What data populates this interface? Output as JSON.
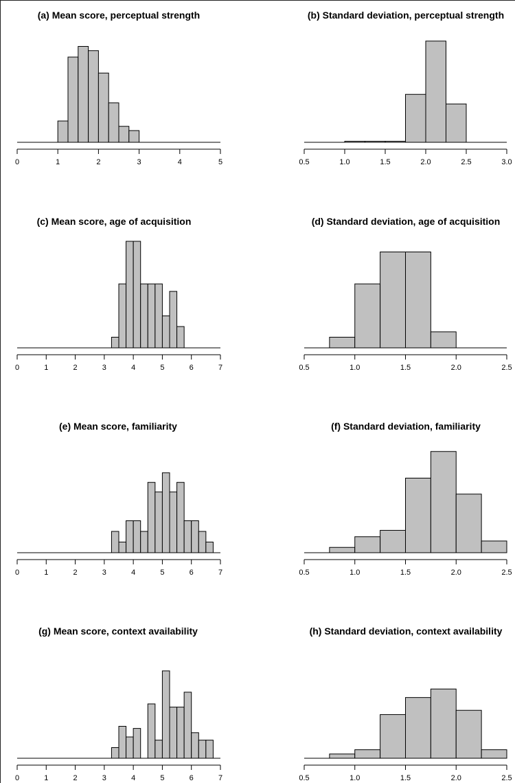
{
  "chart_data": [
    {
      "id": "a",
      "type": "bar",
      "title": "(a) Mean score, perceptual strength",
      "xlim": [
        0,
        5
      ],
      "ticks": [
        0,
        1,
        2,
        3,
        4,
        5
      ],
      "tick_labels": [
        "0",
        "1",
        "2",
        "3",
        "4",
        "5"
      ],
      "bin_width": 0.25,
      "bins": [
        [
          1.0,
          2
        ],
        [
          1.25,
          8
        ],
        [
          1.5,
          9
        ],
        [
          1.75,
          8.6
        ],
        [
          2.0,
          6.5
        ],
        [
          2.25,
          3.7
        ],
        [
          2.5,
          1.5
        ],
        [
          2.75,
          1.1
        ]
      ]
    },
    {
      "id": "b",
      "type": "bar",
      "title": "(b) Standard deviation, perceptual strength",
      "xlim": [
        0.5,
        3.0
      ],
      "ticks": [
        0.5,
        1.0,
        1.5,
        2.0,
        2.5,
        3.0
      ],
      "tick_labels": [
        "0.5",
        "1.0",
        "1.5",
        "2.0",
        "2.5",
        "3.0"
      ],
      "bin_width": 0.25,
      "bins": [
        [
          1.0,
          0.1
        ],
        [
          1.25,
          0.1
        ],
        [
          1.5,
          0.1
        ],
        [
          1.75,
          4.5
        ],
        [
          2.0,
          9.5
        ],
        [
          2.25,
          3.6
        ]
      ]
    },
    {
      "id": "c",
      "type": "bar",
      "title": "(c) Mean score, age of acquisition",
      "xlim": [
        0,
        7
      ],
      "ticks": [
        0,
        1,
        2,
        3,
        4,
        5,
        6,
        7
      ],
      "tick_labels": [
        "0",
        "1",
        "2",
        "3",
        "4",
        "5",
        "6",
        "7"
      ],
      "bin_width": 0.25,
      "bins": [
        [
          3.25,
          1
        ],
        [
          3.5,
          6
        ],
        [
          3.75,
          10
        ],
        [
          4.0,
          10
        ],
        [
          4.25,
          6
        ],
        [
          4.5,
          6
        ],
        [
          4.75,
          6
        ],
        [
          5.0,
          3
        ],
        [
          5.25,
          5.3
        ],
        [
          5.5,
          2
        ]
      ]
    },
    {
      "id": "d",
      "type": "bar",
      "title": "(d) Standard deviation, age of acquisition",
      "xlim": [
        0.5,
        2.5
      ],
      "ticks": [
        0.5,
        1.0,
        1.5,
        2.0,
        2.5
      ],
      "tick_labels": [
        "0.5",
        "1.0",
        "1.5",
        "2.0",
        "2.5"
      ],
      "bin_width": 0.25,
      "bins": [
        [
          0.75,
          1
        ],
        [
          1.0,
          6
        ],
        [
          1.25,
          9
        ],
        [
          1.5,
          9
        ],
        [
          1.75,
          1.5
        ]
      ]
    },
    {
      "id": "e",
      "type": "bar",
      "title": "(e) Mean score, familiarity",
      "xlim": [
        0,
        7
      ],
      "ticks": [
        0,
        1,
        2,
        3,
        4,
        5,
        6,
        7
      ],
      "tick_labels": [
        "0",
        "1",
        "2",
        "3",
        "4",
        "5",
        "6",
        "7"
      ],
      "bin_width": 0.25,
      "bins": [
        [
          3.25,
          2
        ],
        [
          3.5,
          1
        ],
        [
          3.75,
          3
        ],
        [
          4.0,
          3
        ],
        [
          4.25,
          2
        ],
        [
          4.5,
          6.6
        ],
        [
          4.75,
          5.7
        ],
        [
          5.0,
          7.5
        ],
        [
          5.25,
          5.7
        ],
        [
          5.5,
          6.6
        ],
        [
          5.75,
          3
        ],
        [
          6.0,
          3
        ],
        [
          6.25,
          2
        ],
        [
          6.5,
          1
        ]
      ]
    },
    {
      "id": "f",
      "type": "bar",
      "title": "(f) Standard deviation, familiarity",
      "xlim": [
        0.5,
        2.5
      ],
      "ticks": [
        0.5,
        1.0,
        1.5,
        2.0,
        2.5
      ],
      "tick_labels": [
        "0.5",
        "1.0",
        "1.5",
        "2.0",
        "2.5"
      ],
      "bin_width": 0.25,
      "bins": [
        [
          0.75,
          0.5
        ],
        [
          1.0,
          1.5
        ],
        [
          1.25,
          2.1
        ],
        [
          1.5,
          7
        ],
        [
          1.75,
          9.5
        ],
        [
          2.0,
          5.5
        ],
        [
          2.25,
          1.1
        ]
      ]
    },
    {
      "id": "g",
      "type": "bar",
      "title": "(g) Mean score, context availability",
      "xlim": [
        0,
        7
      ],
      "ticks": [
        0,
        1,
        2,
        3,
        4,
        5,
        6,
        7
      ],
      "tick_labels": [
        "0",
        "1",
        "2",
        "3",
        "4",
        "5",
        "6",
        "7"
      ],
      "bin_width": 0.25,
      "bins": [
        [
          3.25,
          1
        ],
        [
          3.5,
          3
        ],
        [
          3.75,
          2
        ],
        [
          4.0,
          2.8
        ],
        [
          4.25,
          0
        ],
        [
          4.5,
          5.1
        ],
        [
          4.75,
          1.7
        ],
        [
          5.0,
          8.2
        ],
        [
          5.25,
          4.8
        ],
        [
          5.5,
          4.8
        ],
        [
          5.75,
          6.2
        ],
        [
          6.0,
          2.4
        ],
        [
          6.25,
          1.7
        ],
        [
          6.5,
          1.7
        ]
      ]
    },
    {
      "id": "h",
      "type": "bar",
      "title": "(h) Standard deviation, context availability",
      "xlim": [
        0.5,
        2.5
      ],
      "ticks": [
        0.5,
        1.0,
        1.5,
        2.0,
        2.5
      ],
      "tick_labels": [
        "0.5",
        "1.0",
        "1.5",
        "2.0",
        "2.5"
      ],
      "bin_width": 0.25,
      "bins": [
        [
          0.75,
          0.4
        ],
        [
          1.0,
          0.8
        ],
        [
          1.25,
          4.1
        ],
        [
          1.5,
          5.7
        ],
        [
          1.75,
          6.5
        ],
        [
          2.0,
          4.5
        ],
        [
          2.25,
          0.8
        ]
      ]
    }
  ]
}
